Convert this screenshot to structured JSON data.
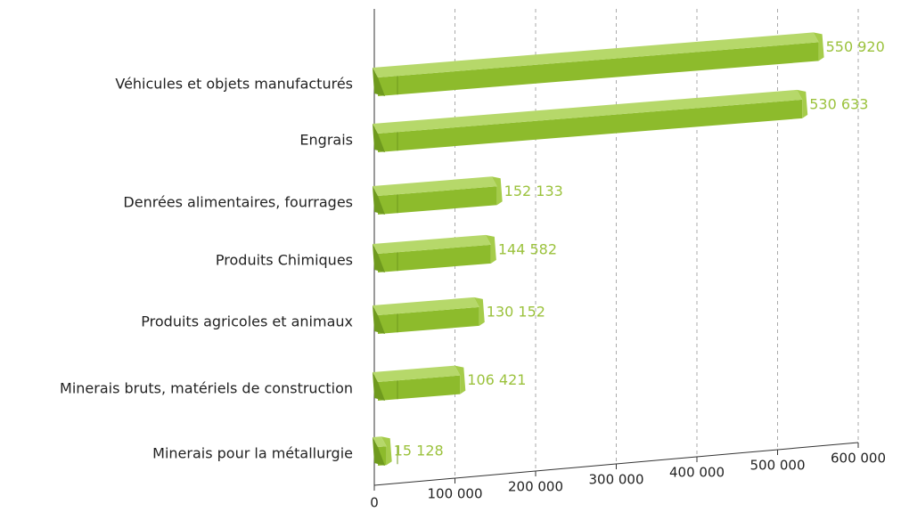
{
  "chart_data": {
    "type": "bar3d",
    "categories": [
      "Véhicules et objets manufacturés",
      "Engrais",
      "Denrées alimentaires, fourrages",
      "Produits Chimiques",
      "Produits agricoles et animaux",
      "Minerais bruts, matériels de construction",
      "Minerais pour la métallurgie"
    ],
    "values": [
      550920,
      530633,
      152133,
      144582,
      130152,
      106421,
      15128
    ],
    "value_labels": [
      "550 920",
      "530 633",
      "152 133",
      "144 582",
      "130 152",
      "106 421",
      "15 128"
    ],
    "color": "#8dbb2c",
    "xlim": [
      0,
      600000
    ],
    "xticks": [
      0,
      {
        "value": 100000,
        "label": "100 000"
      },
      {
        "value": 200000,
        "label": "200 000"
      },
      {
        "value": 300000,
        "label": "300 000"
      },
      {
        "value": 400000,
        "label": "400 000"
      },
      {
        "value": 500000,
        "label": "500 000"
      },
      {
        "value": 600000,
        "label": "600 000"
      }
    ],
    "grid": true
  }
}
